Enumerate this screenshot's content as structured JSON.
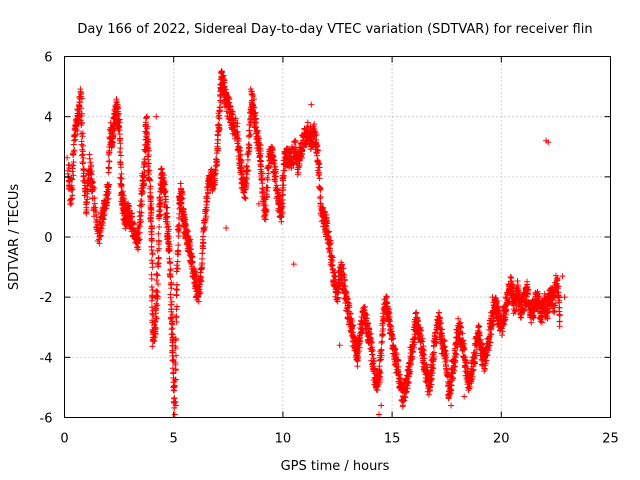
{
  "chart_data": {
    "type": "scatter",
    "title": "Day 166 of 2022, Sidereal Day-to-day VTEC variation (SDTVAR) for receiver flin",
    "xlabel": "GPS time / hours",
    "ylabel": "SDTVAR / TECUs",
    "xlim": [
      0,
      25
    ],
    "ylim": [
      -6,
      6
    ],
    "xticks": [
      0,
      5,
      10,
      15,
      20,
      25
    ],
    "yticks": [
      -6,
      -4,
      -2,
      0,
      2,
      4,
      6
    ],
    "xtick_labels": [
      "0",
      "5",
      "10",
      "15",
      "20",
      "25"
    ],
    "ytick_labels": [
      "-6",
      "-4",
      "-2",
      "0",
      "2",
      "4",
      "6"
    ],
    "grid": true,
    "marker": "plus",
    "series_color": "#ff0000",
    "series": [
      {
        "name": "SDTVAR",
        "trace": [
          [
            0.15,
            2.4
          ],
          [
            0.3,
            1.3
          ],
          [
            0.45,
            3.2
          ],
          [
            0.6,
            4.0
          ],
          [
            0.75,
            4.6
          ],
          [
            0.85,
            2.4
          ],
          [
            1.0,
            1.0
          ],
          [
            1.15,
            2.4
          ],
          [
            1.3,
            1.5
          ],
          [
            1.55,
            0.0
          ],
          [
            1.7,
            0.6
          ],
          [
            1.85,
            1.0
          ],
          [
            2.0,
            1.6
          ],
          [
            2.1,
            3.5
          ],
          [
            2.2,
            3.2
          ],
          [
            2.3,
            4.0
          ],
          [
            2.4,
            4.3
          ],
          [
            2.5,
            3.8
          ],
          [
            2.6,
            1.5
          ],
          [
            2.7,
            1.0
          ],
          [
            2.8,
            0.5
          ],
          [
            2.9,
            0.8
          ],
          [
            3.0,
            0.6
          ],
          [
            3.2,
            0.2
          ],
          [
            3.4,
            -0.1
          ],
          [
            3.55,
            1.5
          ],
          [
            3.65,
            2.2
          ],
          [
            3.75,
            3.8
          ],
          [
            3.85,
            2.5
          ],
          [
            3.95,
            1.0
          ],
          [
            4.0,
            -0.5
          ],
          [
            4.05,
            -3.5
          ],
          [
            4.15,
            -3.0
          ],
          [
            4.25,
            -1.5
          ],
          [
            4.35,
            1.0
          ],
          [
            4.45,
            2.0
          ],
          [
            4.55,
            1.8
          ],
          [
            4.7,
            0.5
          ],
          [
            4.8,
            -0.5
          ],
          [
            4.9,
            -2.5
          ],
          [
            4.95,
            -3.8
          ],
          [
            5.05,
            -5.6
          ],
          [
            5.15,
            -1.5
          ],
          [
            5.25,
            1.0
          ],
          [
            5.35,
            1.5
          ],
          [
            5.45,
            0.5
          ],
          [
            5.55,
            0.2
          ],
          [
            5.7,
            -0.3
          ],
          [
            5.85,
            -0.8
          ],
          [
            6.0,
            -1.6
          ],
          [
            6.1,
            -2.0
          ],
          [
            6.25,
            -1.2
          ],
          [
            6.4,
            0.3
          ],
          [
            6.55,
            1.5
          ],
          [
            6.7,
            2.0
          ],
          [
            6.85,
            1.8
          ],
          [
            7.0,
            2.8
          ],
          [
            7.1,
            4.2
          ],
          [
            7.2,
            5.3
          ],
          [
            7.3,
            5.0
          ],
          [
            7.4,
            4.5
          ],
          [
            7.55,
            4.2
          ],
          [
            7.7,
            3.8
          ],
          [
            7.9,
            3.5
          ],
          [
            8.05,
            2.5
          ],
          [
            8.15,
            1.8
          ],
          [
            8.3,
            1.5
          ],
          [
            8.45,
            3.0
          ],
          [
            8.55,
            4.7
          ],
          [
            8.65,
            4.3
          ],
          [
            8.8,
            3.5
          ],
          [
            8.95,
            2.8
          ],
          [
            9.05,
            1.8
          ],
          [
            9.2,
            0.6
          ],
          [
            9.35,
            2.5
          ],
          [
            9.5,
            2.8
          ],
          [
            9.65,
            2.0
          ],
          [
            9.8,
            1.2
          ],
          [
            9.95,
            0.8
          ],
          [
            10.05,
            2.5
          ],
          [
            10.2,
            2.7
          ],
          [
            10.4,
            2.6
          ],
          [
            10.55,
            2.9
          ],
          [
            10.7,
            2.4
          ],
          [
            10.85,
            3.0
          ],
          [
            11.0,
            3.3
          ],
          [
            11.15,
            3.5
          ],
          [
            11.3,
            3.2
          ],
          [
            11.45,
            3.5
          ],
          [
            11.6,
            2.8
          ],
          [
            11.75,
            0.8
          ],
          [
            11.9,
            0.6
          ],
          [
            12.0,
            0.3
          ],
          [
            12.2,
            -0.5
          ],
          [
            12.35,
            -1.5
          ],
          [
            12.5,
            -2.0
          ],
          [
            12.65,
            -1.0
          ],
          [
            12.8,
            -1.6
          ],
          [
            12.95,
            -2.3
          ],
          [
            13.1,
            -2.8
          ],
          [
            13.25,
            -3.5
          ],
          [
            13.4,
            -4.0
          ],
          [
            13.55,
            -3.2
          ],
          [
            13.7,
            -2.5
          ],
          [
            13.85,
            -3.0
          ],
          [
            14.0,
            -3.5
          ],
          [
            14.15,
            -4.3
          ],
          [
            14.3,
            -5.0
          ],
          [
            14.45,
            -4.5
          ],
          [
            14.6,
            -2.5
          ],
          [
            14.75,
            -2.2
          ],
          [
            14.9,
            -3.0
          ],
          [
            15.05,
            -3.7
          ],
          [
            15.2,
            -4.2
          ],
          [
            15.35,
            -4.8
          ],
          [
            15.5,
            -5.3
          ],
          [
            15.65,
            -5.0
          ],
          [
            15.8,
            -4.3
          ],
          [
            15.95,
            -3.5
          ],
          [
            16.1,
            -2.8
          ],
          [
            16.25,
            -3.2
          ],
          [
            16.4,
            -3.8
          ],
          [
            16.55,
            -4.5
          ],
          [
            16.7,
            -5.0
          ],
          [
            16.85,
            -4.2
          ],
          [
            17.0,
            -3.2
          ],
          [
            17.15,
            -2.8
          ],
          [
            17.3,
            -3.5
          ],
          [
            17.45,
            -4.0
          ],
          [
            17.6,
            -5.2
          ],
          [
            17.75,
            -4.6
          ],
          [
            17.9,
            -3.8
          ],
          [
            18.05,
            -3.0
          ],
          [
            18.2,
            -3.5
          ],
          [
            18.35,
            -4.2
          ],
          [
            18.5,
            -4.8
          ],
          [
            18.65,
            -4.4
          ],
          [
            18.8,
            -3.8
          ],
          [
            18.95,
            -3.2
          ],
          [
            19.1,
            -3.8
          ],
          [
            19.25,
            -4.2
          ],
          [
            19.4,
            -3.5
          ],
          [
            19.55,
            -2.8
          ],
          [
            19.7,
            -2.2
          ],
          [
            19.85,
            -2.6
          ],
          [
            20.0,
            -3.0
          ],
          [
            20.15,
            -2.5
          ],
          [
            20.3,
            -2.0
          ],
          [
            20.45,
            -1.6
          ],
          [
            20.6,
            -2.3
          ],
          [
            20.75,
            -1.8
          ],
          [
            20.9,
            -2.4
          ],
          [
            21.05,
            -2.1
          ],
          [
            21.2,
            -1.8
          ],
          [
            21.35,
            -2.6
          ],
          [
            21.5,
            -2.3
          ],
          [
            21.65,
            -2.0
          ],
          [
            21.8,
            -2.6
          ],
          [
            21.95,
            -2.2
          ],
          [
            22.1,
            -2.5
          ],
          [
            22.25,
            -1.8
          ],
          [
            22.4,
            -2.2
          ],
          [
            22.55,
            -1.5
          ],
          [
            22.7,
            -2.8
          ]
        ],
        "outliers": [
          [
            22.05,
            3.2
          ],
          [
            22.15,
            3.15
          ],
          [
            11.3,
            4.4
          ],
          [
            5.1,
            -5.6
          ],
          [
            12.6,
            -3.6
          ],
          [
            14.4,
            -5.9
          ],
          [
            14.5,
            -5.6
          ],
          [
            17.7,
            -5.6
          ],
          [
            18.3,
            -5.3
          ],
          [
            10.5,
            -0.9
          ],
          [
            8.9,
            1.1
          ],
          [
            7.4,
            0.3
          ],
          [
            12.9,
            -1.9
          ],
          [
            13.6,
            -2.8
          ],
          [
            16.0,
            -3.0
          ],
          [
            19.6,
            -2.0
          ],
          [
            4.2,
            4.0
          ],
          [
            22.8,
            -1.3
          ],
          [
            22.9,
            -2.0
          ]
        ]
      }
    ]
  }
}
